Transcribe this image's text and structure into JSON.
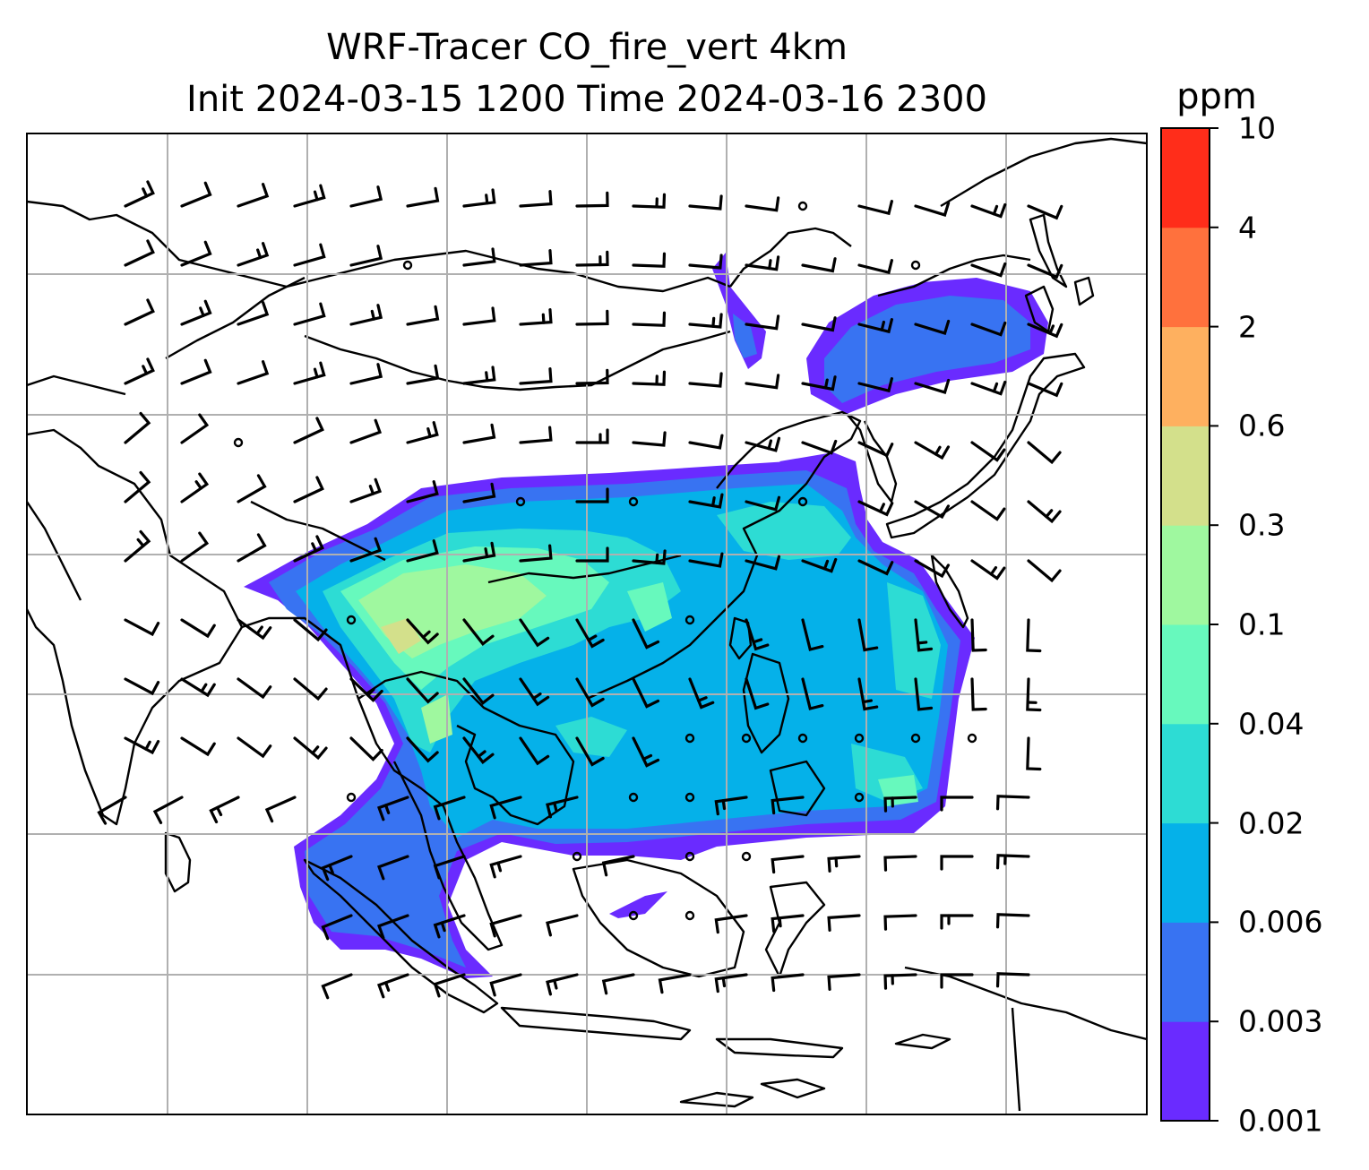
{
  "title": {
    "line1": "WRF-Tracer CO_fire_vert 4km",
    "line2": "Init 2024-03-15 1200 Time 2024-03-16 2300"
  },
  "colorbar": {
    "label": "ppm",
    "ticks": [
      "0.001",
      "0.003",
      "0.006",
      "0.02",
      "0.04",
      "0.1",
      "0.3",
      "0.6",
      "2",
      "4",
      "10"
    ],
    "colors": [
      "#6a2bff",
      "#3873f2",
      "#05b1e9",
      "#2ddcd4",
      "#67f9bd",
      "#9ff89f",
      "#d3e08b",
      "#feb05f",
      "#ff713d",
      "#ff2d1a"
    ]
  },
  "map": {
    "field": "CO_fire_vert",
    "gridlines": "on",
    "coastlines": "on",
    "wind_barbs": "on"
  }
}
